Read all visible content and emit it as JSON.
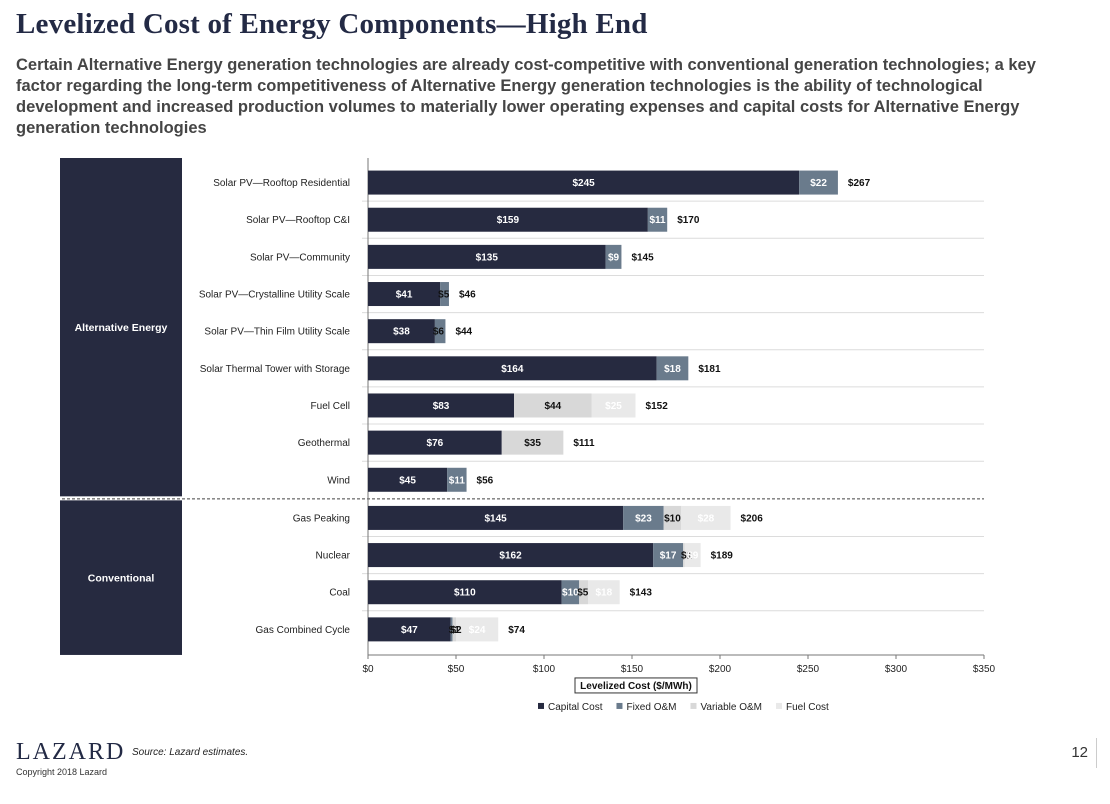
{
  "page": {
    "title": "Levelized Cost of Energy Components—High End",
    "subtitle": "Certain Alternative Energy generation technologies are already cost-competitive with conventional generation technologies; a key factor regarding the long-term competitiveness of Alternative Energy generation technologies is the ability of technological development and increased production volumes to materially lower operating expenses and capital costs for Alternative Energy generation technologies",
    "source": "Source: Lazard estimates.",
    "logo": "LAZARD",
    "copyright": "Copyright 2018 Lazard",
    "page_number": "12"
  },
  "chart_data": {
    "type": "bar",
    "orientation": "horizontal",
    "stacked": true,
    "xlabel": "Levelized Cost ($/MWh)",
    "xlim": [
      0,
      350
    ],
    "xticks": [
      0,
      50,
      100,
      150,
      200,
      250,
      300,
      350
    ],
    "tick_format": "${v}",
    "legend_position": "bottom",
    "groups": [
      {
        "name": "Alternative Energy",
        "count": 9
      },
      {
        "name": "Conventional",
        "count": 4
      }
    ],
    "categories": [
      "Solar PV—Rooftop Residential",
      "Solar PV—Rooftop C&I",
      "Solar PV—Community",
      "Solar PV—Crystalline Utility Scale",
      "Solar PV—Thin Film Utility Scale",
      "Solar Thermal Tower with Storage",
      "Fuel Cell",
      "Geothermal",
      "Wind",
      "Gas Peaking",
      "Nuclear",
      "Coal",
      "Gas Combined Cycle"
    ],
    "series": [
      {
        "name": "Capital Cost",
        "color": "#262a40",
        "text_color": "#ffffff",
        "values": [
          245,
          159,
          135,
          41,
          38,
          164,
          83,
          76,
          45,
          145,
          162,
          110,
          47
        ]
      },
      {
        "name": "Fixed O&M",
        "color": "#6a7b8c",
        "text_color": "#ffffff",
        "values": [
          22,
          11,
          9,
          5,
          6,
          18,
          0,
          0,
          11,
          23,
          17,
          10,
          1
        ]
      },
      {
        "name": "Variable O&M",
        "color": "#d8d8d8",
        "text_color": "#111111",
        "values": [
          0,
          0,
          0,
          0,
          0,
          0,
          44,
          35,
          0,
          10,
          1,
          5,
          2
        ]
      },
      {
        "name": "Fuel Cost",
        "color": "#e9e9e9",
        "text_color": "#ffffff",
        "values": [
          0,
          0,
          0,
          0,
          0,
          0,
          25,
          0,
          0,
          28,
          9,
          18,
          24
        ]
      }
    ],
    "totals": [
      267,
      170,
      145,
      46,
      44,
      181,
      152,
      111,
      56,
      206,
      189,
      143,
      74
    ]
  }
}
